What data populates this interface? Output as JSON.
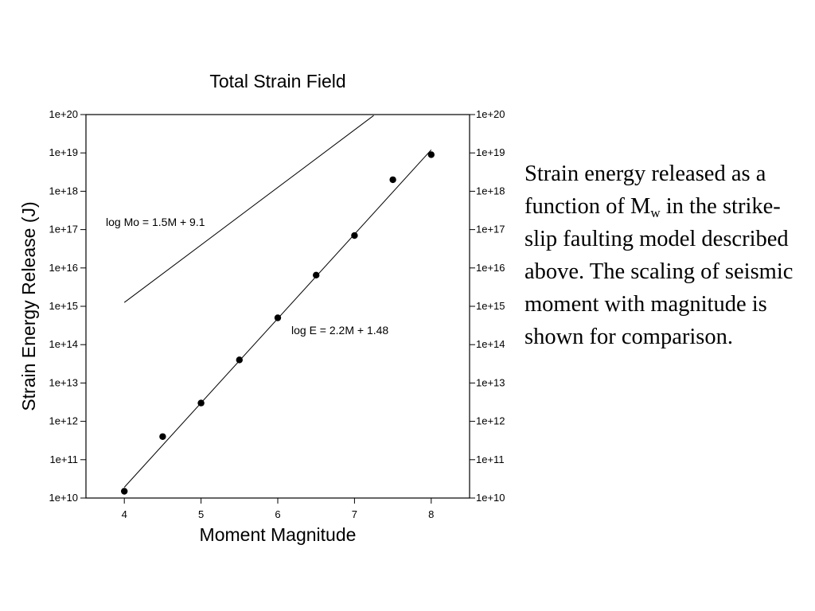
{
  "chart_data": {
    "type": "scatter",
    "title": "Total Strain Field",
    "xlabel": "Moment Magnitude",
    "ylabel": "Strain Energy Release (J)",
    "xlim": [
      3.5,
      8.5
    ],
    "ylim_log10": [
      10,
      20
    ],
    "y_scale": "log",
    "x_ticks": [
      "4",
      "5",
      "6",
      "7",
      "8"
    ],
    "y_ticks": [
      "1e+10",
      "1e+11",
      "1e+12",
      "1e+13",
      "1e+14",
      "1e+15",
      "1e+16",
      "1e+17",
      "1e+18",
      "1e+19",
      "1e+20"
    ],
    "series": [
      {
        "x": [
          4,
          4.5,
          5,
          5.5,
          6,
          6.5,
          7,
          7.5,
          8
        ],
        "y": [
          15000000000.0,
          400000000000.0,
          3000000000000.0,
          40000000000000.0,
          500000000000000.0,
          6500000000000000.0,
          7e+16,
          2e+18,
          9e+18
        ]
      }
    ],
    "lines": [
      {
        "label": "log Mo = 1.5M + 9.1",
        "slope": 1.5,
        "intercept": 9.1,
        "x_range": [
          4,
          7.25
        ]
      },
      {
        "label": "log E = 2.2M + 1.48",
        "slope": 2.2,
        "intercept": 1.48,
        "x_range": [
          4,
          8
        ]
      }
    ],
    "grid": false
  },
  "caption": {
    "text_before": "Strain energy released as a function of M",
    "subscript": "w",
    "text_after": " in the strike-slip faulting model described above. The scaling of seismic moment with magnitude is shown for comparison."
  }
}
